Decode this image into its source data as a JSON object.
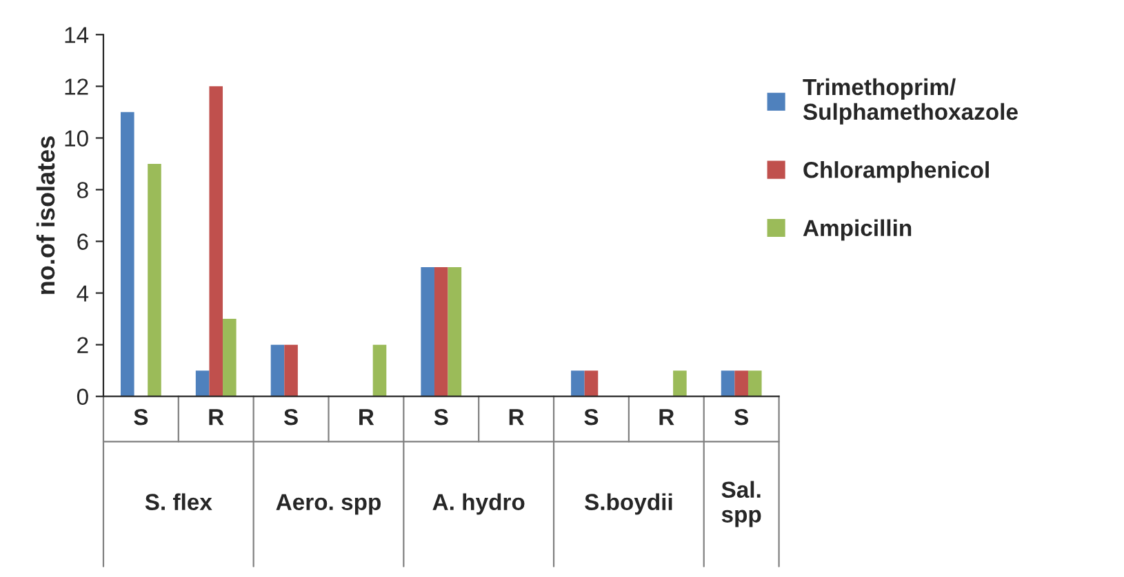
{
  "chart_data": {
    "type": "bar",
    "ylabel": "no.of isolates",
    "categories": [
      "S",
      "R",
      "S",
      "R",
      "S",
      "R",
      "S",
      "R",
      "S"
    ],
    "series": [
      {
        "name": "Trimethoprim/\nSulphamethoxazole",
        "color": "#4f81bd",
        "values": [
          11,
          1,
          2,
          0,
          5,
          0,
          1,
          0,
          1
        ]
      },
      {
        "name": "Chloramphenicol",
        "color": "#c0504d",
        "values": [
          0,
          12,
          2,
          0,
          5,
          0,
          1,
          0,
          1
        ]
      },
      {
        "name": "Ampicillin",
        "color": "#9bbb59",
        "values": [
          9,
          3,
          0,
          2,
          5,
          0,
          0,
          1,
          1
        ]
      }
    ],
    "annotations": [
      "S. flex",
      "Aero. spp",
      "A. hydro",
      "S.boydii",
      "Sal.\nspp"
    ],
    "ylim": [
      0,
      14
    ],
    "yticks": [
      0,
      2,
      4,
      6,
      8,
      10,
      12,
      14
    ],
    "grid": false,
    "legend": "right"
  }
}
